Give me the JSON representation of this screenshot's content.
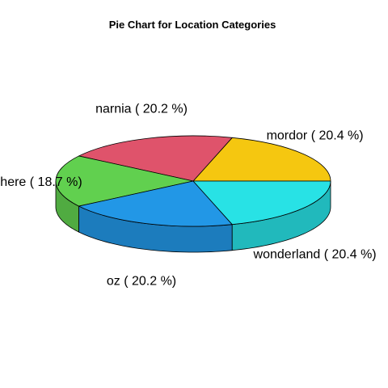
{
  "chart_data": {
    "type": "pie",
    "title": "Pie Chart for Location Categories",
    "slices": [
      {
        "label": "mordor ( 20.4 %)",
        "value": 20.4,
        "color": "#F5C710"
      },
      {
        "label": "narnia ( 20.2 %)",
        "value": 20.2,
        "color": "#DF536B"
      },
      {
        "label": "here ( 18.7 %)",
        "value": 18.7,
        "color": "#61D04F"
      },
      {
        "label": "oz ( 20.2 %)",
        "value": 20.2,
        "color": "#2297E6"
      },
      {
        "label": "wonderland ( 20.4 %)",
        "value": 20.4,
        "color": "#28E2E5"
      }
    ]
  }
}
